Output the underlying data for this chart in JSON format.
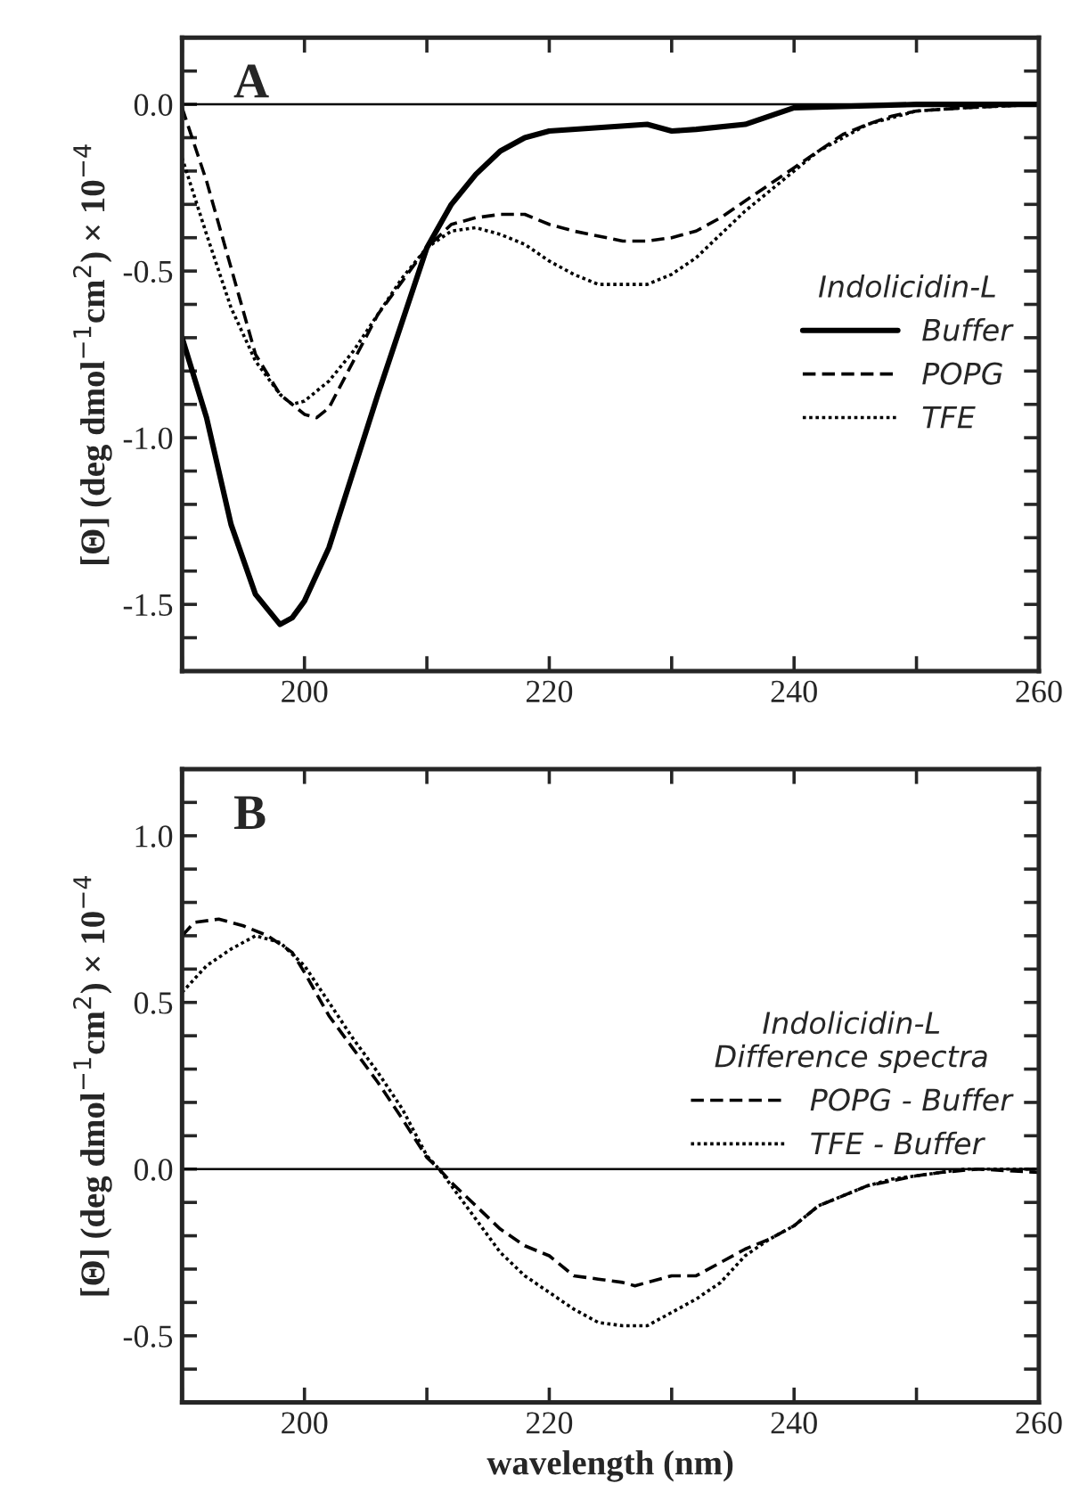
{
  "chart_data": [
    {
      "type": "line",
      "ylabel": "[Θ] (deg dmol$^{−1}$cm$^{2}$) × 10$^{−4}$",
      "legend_title": "Indolicidin-L",
      "annotations": [
        "A"
      ],
      "legend": "center right",
      "xlim": [
        190,
        260
      ],
      "ylim": [
        -1.7,
        0.2
      ],
      "xticks": [
        {
          "value": 190,
          "label": null
        },
        200,
        {
          "value": 210,
          "label": null
        },
        220,
        {
          "value": 230,
          "label": null
        },
        240,
        {
          "value": 250,
          "label": null
        },
        260
      ],
      "yticks": [
        {
          "value": -1.7,
          "label": null
        },
        {
          "value": -1.6,
          "label": null
        },
        -1.5,
        {
          "value": -1.4,
          "label": null
        },
        {
          "value": -1.3,
          "label": null
        },
        {
          "value": -1.2,
          "label": null
        },
        {
          "value": -1.1,
          "label": null
        },
        {
          "value": -1.0,
          "label": "-1.0"
        },
        {
          "value": -0.9,
          "label": null
        },
        {
          "value": -0.8,
          "label": null
        },
        {
          "value": -0.7,
          "label": null
        },
        {
          "value": -0.6,
          "label": null
        },
        -0.5,
        {
          "value": -0.4,
          "label": null
        },
        {
          "value": -0.3,
          "label": null
        },
        {
          "value": -0.2,
          "label": null
        },
        {
          "value": -0.1,
          "label": null
        },
        {
          "value": 0,
          "label": "0.0"
        },
        {
          "value": 0.1,
          "label": null
        },
        {
          "value": 0.2,
          "label": null
        }
      ],
      "ref_lines": [
        {
          "axis": "y",
          "value": 0,
          "color": "#000000",
          "line_style": "solid"
        }
      ],
      "series": [
        {
          "name": "Buffer",
          "color": "#000000",
          "line_style": "solid",
          "x": [
            190,
            192,
            194,
            196,
            198,
            199,
            200,
            202,
            204,
            206,
            208,
            210,
            212,
            214,
            216,
            218,
            220,
            224,
            228,
            230,
            232,
            236,
            240,
            250,
            260
          ],
          "values": [
            -0.7,
            -0.94,
            -1.26,
            -1.47,
            -1.56,
            -1.54,
            -1.49,
            -1.33,
            -1.1,
            -0.87,
            -0.65,
            -0.43,
            -0.3,
            -0.21,
            -0.14,
            -0.1,
            -0.08,
            -0.07,
            -0.06,
            -0.08,
            -0.075,
            -0.06,
            -0.01,
            0.0,
            0.0
          ]
        },
        {
          "name": "POPG",
          "color": "#000000",
          "line_style": "dashed",
          "x": [
            190,
            192,
            194,
            196,
            198,
            200,
            201,
            202,
            204,
            206,
            208,
            210,
            212,
            214,
            216,
            218,
            220,
            222,
            226,
            228,
            230,
            232,
            234,
            236,
            238,
            240,
            242,
            244,
            246,
            248,
            250,
            254,
            260
          ],
          "values": [
            -0.01,
            -0.23,
            -0.49,
            -0.75,
            -0.87,
            -0.93,
            -0.94,
            -0.91,
            -0.77,
            -0.63,
            -0.53,
            -0.43,
            -0.36,
            -0.34,
            -0.33,
            -0.33,
            -0.36,
            -0.38,
            -0.41,
            -0.41,
            -0.4,
            -0.38,
            -0.34,
            -0.29,
            -0.24,
            -0.19,
            -0.14,
            -0.09,
            -0.06,
            -0.035,
            -0.02,
            -0.01,
            0.0
          ]
        },
        {
          "name": "TFE",
          "color": "#000000",
          "line_style": "dotted",
          "x": [
            190,
            192,
            194,
            196,
            198,
            199,
            200,
            202,
            204,
            206,
            208,
            210,
            212,
            214,
            216,
            218,
            220,
            222,
            224,
            226,
            228,
            230,
            232,
            234,
            236,
            238,
            240,
            242,
            244,
            246,
            248,
            250,
            254,
            260
          ],
          "values": [
            -0.16,
            -0.39,
            -0.61,
            -0.77,
            -0.87,
            -0.9,
            -0.89,
            -0.83,
            -0.74,
            -0.63,
            -0.52,
            -0.43,
            -0.38,
            -0.37,
            -0.39,
            -0.42,
            -0.47,
            -0.51,
            -0.54,
            -0.54,
            -0.54,
            -0.51,
            -0.46,
            -0.39,
            -0.32,
            -0.26,
            -0.2,
            -0.14,
            -0.1,
            -0.06,
            -0.04,
            -0.02,
            -0.01,
            0.0
          ]
        }
      ]
    },
    {
      "type": "line",
      "ylabel": "[Θ] (deg dmol$^{−1}$cm$^{2}$) × 10$^{−4}$",
      "xlabel": "wavelength (nm)",
      "legend_title": "Indolicidin-L\nDifference spectra",
      "annotations": [
        "B"
      ],
      "legend": "center right",
      "xlim": [
        190,
        260
      ],
      "ylim": [
        -0.7,
        1.2
      ],
      "xticks": [
        {
          "value": 190,
          "label": null
        },
        200,
        {
          "value": 210,
          "label": null
        },
        220,
        {
          "value": 230,
          "label": null
        },
        240,
        {
          "value": 250,
          "label": null
        },
        260
      ],
      "yticks": [
        {
          "value": -0.7,
          "label": null
        },
        {
          "value": -0.6,
          "label": null
        },
        -0.5,
        {
          "value": -0.4,
          "label": null
        },
        {
          "value": -0.3,
          "label": null
        },
        {
          "value": -0.2,
          "label": null
        },
        {
          "value": -0.1,
          "label": null
        },
        {
          "value": 0,
          "label": "0.0"
        },
        {
          "value": 0.1,
          "label": null
        },
        {
          "value": 0.2,
          "label": null
        },
        {
          "value": 0.3,
          "label": null
        },
        {
          "value": 0.4,
          "label": null
        },
        0.5,
        {
          "value": 0.6,
          "label": null
        },
        {
          "value": 0.7,
          "label": null
        },
        {
          "value": 0.8,
          "label": null
        },
        {
          "value": 0.9,
          "label": null
        },
        {
          "value": 1,
          "label": "1.0"
        },
        {
          "value": 1.1,
          "label": null
        },
        {
          "value": 1.2,
          "label": null
        }
      ],
      "ref_lines": [
        {
          "axis": "y",
          "value": 0,
          "color": "#000000",
          "line_style": "solid"
        }
      ],
      "series": [
        {
          "name": "POPG - Buffer",
          "color": "#000000",
          "line_style": "dashed",
          "x": [
            190,
            191,
            193,
            195,
            197,
            199,
            200,
            202,
            204,
            206,
            208,
            210,
            211,
            212,
            214,
            216,
            218,
            220,
            222,
            224,
            226,
            227,
            230,
            232,
            234,
            236,
            238,
            240,
            242,
            244,
            246,
            248,
            250,
            252,
            255,
            260
          ],
          "values": [
            0.7,
            0.74,
            0.75,
            0.73,
            0.7,
            0.65,
            0.59,
            0.46,
            0.36,
            0.26,
            0.15,
            0.035,
            0.0,
            -0.04,
            -0.11,
            -0.18,
            -0.23,
            -0.26,
            -0.32,
            -0.33,
            -0.34,
            -0.35,
            -0.32,
            -0.32,
            -0.28,
            -0.24,
            -0.21,
            -0.17,
            -0.11,
            -0.08,
            -0.05,
            -0.035,
            -0.02,
            -0.01,
            0.0,
            -0.01
          ]
        },
        {
          "name": "TFE - Buffer",
          "color": "#000000",
          "line_style": "dotted",
          "x": [
            190,
            192,
            194,
            196,
            198,
            200,
            202,
            204,
            206,
            208,
            210,
            211,
            212,
            214,
            216,
            218,
            220,
            222,
            224,
            226,
            228,
            230,
            232,
            234,
            236,
            238,
            240,
            242,
            244,
            246,
            248,
            250,
            254,
            260
          ],
          "values": [
            0.53,
            0.61,
            0.66,
            0.7,
            0.68,
            0.61,
            0.5,
            0.39,
            0.29,
            0.18,
            0.04,
            0.0,
            -0.05,
            -0.15,
            -0.25,
            -0.32,
            -0.37,
            -0.42,
            -0.46,
            -0.47,
            -0.47,
            -0.43,
            -0.39,
            -0.34,
            -0.26,
            -0.21,
            -0.17,
            -0.11,
            -0.08,
            -0.05,
            -0.03,
            -0.02,
            0.0,
            0.0
          ]
        }
      ]
    }
  ]
}
